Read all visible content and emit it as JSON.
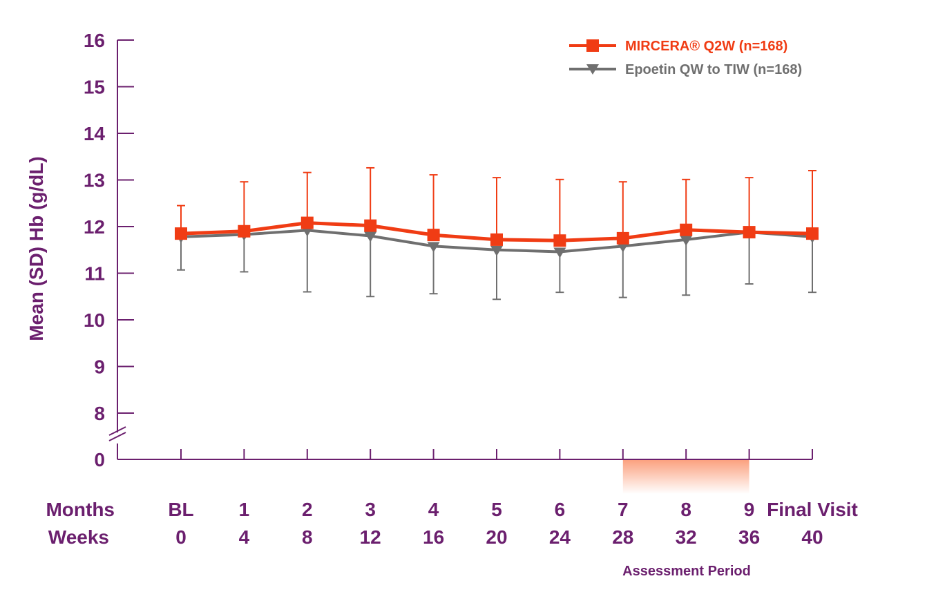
{
  "chart_data": {
    "type": "line",
    "title": "",
    "ylabel": "Mean (SD) Hb (g/dL)",
    "ylim": [
      8,
      16
    ],
    "y_ticks": [
      "16",
      "15",
      "14",
      "13",
      "12",
      "11",
      "10",
      "9",
      "8"
    ],
    "y_zero_label": "0",
    "y_axis_break": true,
    "x_row_labels": {
      "months": "Months",
      "weeks": "Weeks"
    },
    "months": [
      "BL",
      "1",
      "2",
      "3",
      "4",
      "5",
      "6",
      "7",
      "8",
      "9",
      "Final Visit"
    ],
    "weeks": [
      "0",
      "4",
      "8",
      "12",
      "16",
      "20",
      "24",
      "28",
      "32",
      "36",
      "40"
    ],
    "series": [
      {
        "name": "MIRCERA® Q2W (n=168)",
        "color": "#f03c14",
        "marker": "square",
        "values": [
          11.85,
          11.9,
          12.08,
          12.02,
          11.82,
          11.72,
          11.7,
          11.75,
          11.93,
          11.88,
          11.85
        ],
        "upper": [
          12.45,
          12.96,
          13.16,
          13.26,
          13.11,
          13.05,
          13.01,
          12.96,
          13.01,
          13.05,
          13.2
        ]
      },
      {
        "name": "Epoetin QW to TIW (n=168)",
        "color": "#6f6f6f",
        "marker": "triangle-down",
        "values": [
          11.78,
          11.83,
          11.92,
          11.8,
          11.58,
          11.5,
          11.46,
          11.58,
          11.72,
          11.88,
          11.78
        ],
        "lower": [
          11.07,
          11.03,
          10.6,
          10.5,
          10.56,
          10.44,
          10.59,
          10.48,
          10.53,
          10.77,
          10.59
        ]
      }
    ],
    "legend_position": "top-right",
    "grid": false,
    "assessment_period": {
      "label": "Assessment Period",
      "from_week": "28",
      "to_week": "36",
      "color": "#fb9a76"
    },
    "axis_color": "#6b1f6e"
  }
}
